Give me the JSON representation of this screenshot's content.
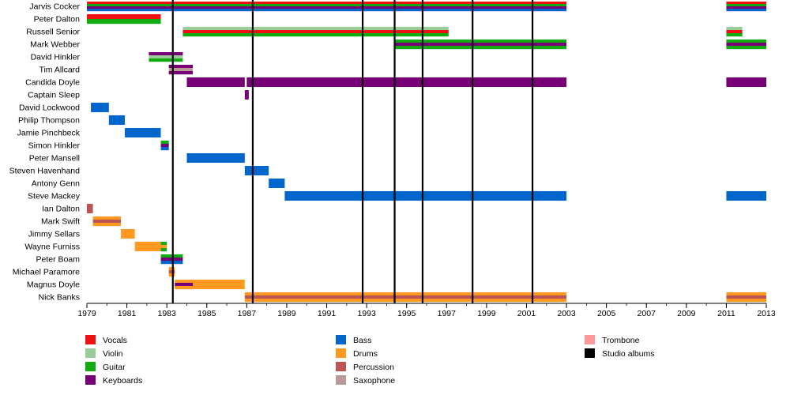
{
  "chart_data": {
    "type": "timeline",
    "xlim": [
      1979,
      2013
    ],
    "x_ticks": [
      "1979",
      "1981",
      "1983",
      "1985",
      "1987",
      "1989",
      "1991",
      "1993",
      "1995",
      "1997",
      "1999",
      "2001",
      "2003",
      "2005",
      "2007",
      "2009",
      "2011",
      "2013"
    ],
    "roles": [
      {
        "name": "Vocals",
        "color": "#ee1111"
      },
      {
        "name": "Violin",
        "color": "#99cc99"
      },
      {
        "name": "Guitar",
        "color": "#11aa11"
      },
      {
        "name": "Keyboards",
        "color": "#770077"
      },
      {
        "name": "Bass",
        "color": "#0066cc"
      },
      {
        "name": "Drums",
        "color": "#ff9922"
      },
      {
        "name": "Percussion",
        "color": "#bb5555"
      },
      {
        "name": "Saxophone",
        "color": "#bb9999"
      },
      {
        "name": "Trombone",
        "color": "#ff9999"
      },
      {
        "name": "Studio albums",
        "color": "#000000"
      }
    ],
    "studio_albums": [
      1983.3,
      1987.3,
      1992.8,
      1994.4,
      1995.8,
      1998.3,
      2001.3
    ],
    "members": [
      {
        "name": "Jarvis Cocker",
        "bars": [
          {
            "start": 1979.0,
            "end": 2003.0,
            "roles": [
              "Vocals",
              "Guitar",
              "Keyboards",
              "Bass"
            ]
          },
          {
            "start": 2011.0,
            "end": 2013.0,
            "roles": [
              "Vocals",
              "Guitar",
              "Keyboards",
              "Bass"
            ]
          }
        ]
      },
      {
        "name": "Peter Dalton",
        "bars": [
          {
            "start": 1979.0,
            "end": 1982.7,
            "roles": [
              "Vocals",
              "Guitar"
            ]
          }
        ]
      },
      {
        "name": "Russell Senior",
        "bars": [
          {
            "start": 1983.8,
            "end": 1997.1,
            "roles": [
              "Violin",
              "Vocals",
              "Guitar"
            ]
          },
          {
            "start": 2011.0,
            "end": 2011.8,
            "roles": [
              "Violin",
              "Vocals",
              "Guitar"
            ]
          }
        ]
      },
      {
        "name": "Mark Webber",
        "bars": [
          {
            "start": 1994.4,
            "end": 2003.0,
            "roles": [
              "Guitar",
              "Keyboards",
              "Guitar"
            ]
          },
          {
            "start": 2011.0,
            "end": 2013.0,
            "roles": [
              "Guitar",
              "Keyboards",
              "Guitar"
            ]
          }
        ]
      },
      {
        "name": "David Hinkler",
        "bars": [
          {
            "start": 1982.1,
            "end": 1983.8,
            "roles": [
              "Keyboards",
              "Violin",
              "Guitar"
            ]
          }
        ]
      },
      {
        "name": "Tim Allcard",
        "bars": [
          {
            "start": 1983.1,
            "end": 1984.3,
            "roles": [
              "Keyboards",
              "Saxophone",
              "Keyboards"
            ]
          }
        ]
      },
      {
        "name": "Candida Doyle",
        "bars": [
          {
            "start": 1984.0,
            "end": 1986.9,
            "roles": [
              "Keyboards"
            ]
          },
          {
            "start": 1987.0,
            "end": 2003.0,
            "roles": [
              "Keyboards"
            ]
          },
          {
            "start": 2011.0,
            "end": 2013.0,
            "roles": [
              "Keyboards"
            ]
          }
        ]
      },
      {
        "name": "Captain Sleep",
        "bars": [
          {
            "start": 1986.9,
            "end": 1987.1,
            "roles": [
              "Keyboards"
            ]
          }
        ]
      },
      {
        "name": "David Lockwood",
        "bars": [
          {
            "start": 1979.2,
            "end": 1980.1,
            "roles": [
              "Bass"
            ]
          }
        ]
      },
      {
        "name": "Philip Thompson",
        "bars": [
          {
            "start": 1980.1,
            "end": 1980.9,
            "roles": [
              "Bass"
            ]
          }
        ]
      },
      {
        "name": "Jamie Pinchbeck",
        "bars": [
          {
            "start": 1980.9,
            "end": 1982.7,
            "roles": [
              "Bass"
            ]
          }
        ]
      },
      {
        "name": "Simon Hinkler",
        "bars": [
          {
            "start": 1982.7,
            "end": 1983.1,
            "roles": [
              "Guitar",
              "Keyboards",
              "Bass"
            ]
          }
        ]
      },
      {
        "name": "Peter Mansell",
        "bars": [
          {
            "start": 1984.0,
            "end": 1986.9,
            "roles": [
              "Bass"
            ]
          }
        ]
      },
      {
        "name": "Steven Havenhand",
        "bars": [
          {
            "start": 1986.9,
            "end": 1988.1,
            "roles": [
              "Bass"
            ]
          }
        ]
      },
      {
        "name": "Antony Genn",
        "bars": [
          {
            "start": 1988.1,
            "end": 1988.9,
            "roles": [
              "Bass"
            ]
          }
        ]
      },
      {
        "name": "Steve Mackey",
        "bars": [
          {
            "start": 1988.9,
            "end": 2003.0,
            "roles": [
              "Bass"
            ]
          },
          {
            "start": 2011.0,
            "end": 2013.0,
            "roles": [
              "Bass"
            ]
          }
        ]
      },
      {
        "name": "Ian Dalton",
        "bars": [
          {
            "start": 1979.0,
            "end": 1979.3,
            "roles": [
              "Percussion"
            ]
          }
        ]
      },
      {
        "name": "Mark Swift",
        "bars": [
          {
            "start": 1979.3,
            "end": 1980.7,
            "roles": [
              "Drums",
              "Percussion",
              "Drums"
            ]
          }
        ]
      },
      {
        "name": "Jimmy Sellars",
        "bars": [
          {
            "start": 1980.7,
            "end": 1981.4,
            "roles": [
              "Drums"
            ]
          }
        ]
      },
      {
        "name": "Wayne Furniss",
        "bars": [
          {
            "start": 1981.4,
            "end": 1982.7,
            "roles": [
              "Drums"
            ]
          },
          {
            "start": 1982.7,
            "end": 1983.0,
            "roles": [
              "Guitar",
              "Drums",
              "Guitar"
            ]
          }
        ]
      },
      {
        "name": "Peter Boam",
        "bars": [
          {
            "start": 1982.7,
            "end": 1983.8,
            "roles": [
              "Guitar",
              "Keyboards",
              "Bass"
            ]
          }
        ]
      },
      {
        "name": "Michael Paramore",
        "bars": [
          {
            "start": 1983.1,
            "end": 1983.4,
            "roles": [
              "Drums",
              "Percussion",
              "Drums"
            ]
          }
        ]
      },
      {
        "name": "Magnus Doyle",
        "bars": [
          {
            "start": 1983.4,
            "end": 1986.9,
            "roles": [
              "Drums"
            ]
          },
          {
            "start": 1983.4,
            "end": 1984.3,
            "roles": [
              "Drums",
              "Keyboards",
              "Drums"
            ]
          }
        ]
      },
      {
        "name": "Nick Banks",
        "bars": [
          {
            "start": 1986.9,
            "end": 2003.0,
            "roles": [
              "Drums",
              "Percussion",
              "Drums"
            ]
          },
          {
            "start": 2011.0,
            "end": 2013.0,
            "roles": [
              "Drums",
              "Percussion",
              "Drums"
            ]
          }
        ]
      }
    ]
  }
}
